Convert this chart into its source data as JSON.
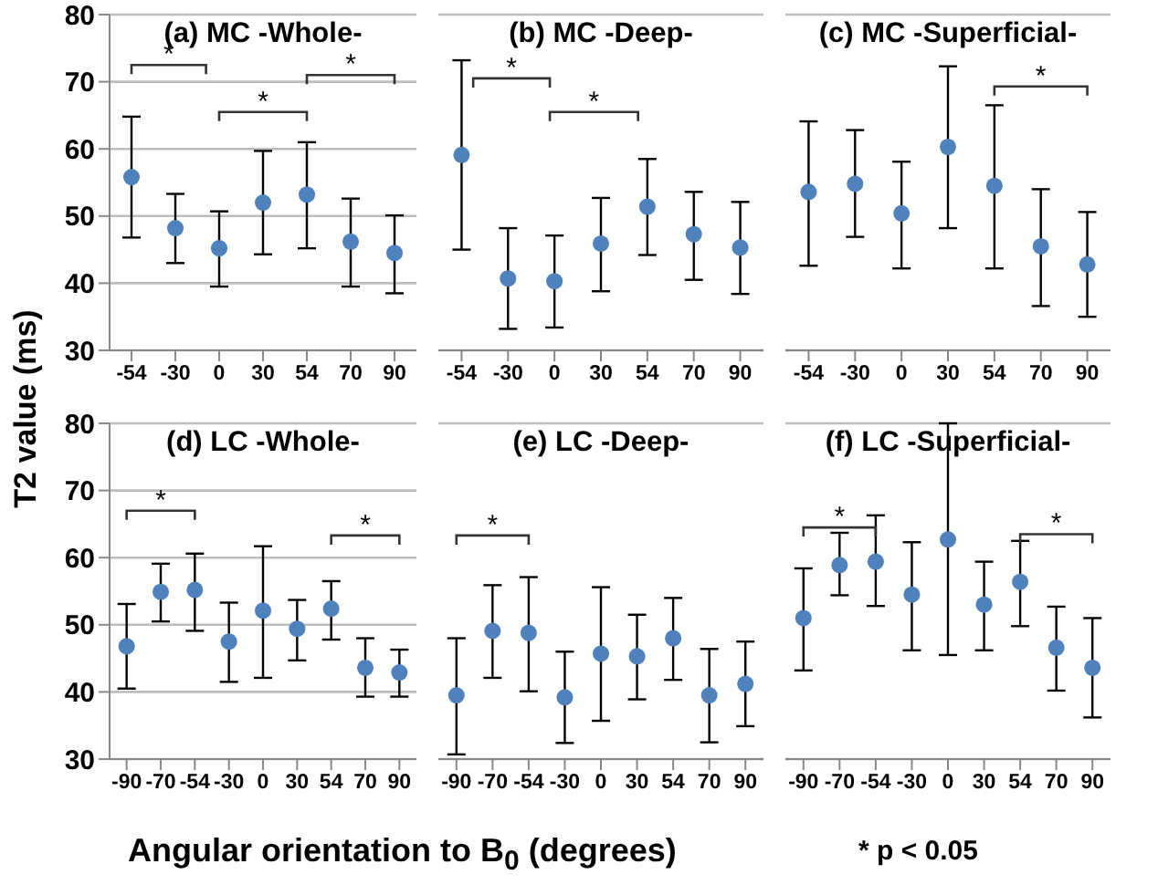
{
  "chart_data": [
    {
      "type": "scatter",
      "title": "(a) MC -Whole-",
      "ylabel": "T2 value (ms)",
      "categories": [
        "-54",
        "-30",
        "0",
        "30",
        "54",
        "70",
        "90"
      ],
      "series": [
        {
          "color": "#4f81bd",
          "values": [
            55.8,
            48.2,
            45.2,
            52,
            53.2,
            46.2,
            44.5
          ],
          "errors": [
            [
              46.8,
              64.8
            ],
            [
              43,
              53.3
            ],
            [
              39.5,
              50.7
            ],
            [
              44.3,
              59.7
            ],
            [
              45.2,
              61
            ],
            [
              39.5,
              52.6
            ],
            [
              38.5,
              50.1
            ]
          ]
        }
      ],
      "ylim": [
        30,
        80
      ],
      "yticks": [
        30,
        40,
        50,
        60,
        70,
        80
      ],
      "grid": "y",
      "marker": "circle",
      "annotations": [
        "*",
        "*",
        "*"
      ]
    },
    {
      "type": "scatter",
      "title": "(b) MC -Deep-",
      "categories": [
        "-54",
        "-30",
        "0",
        "30",
        "54",
        "70",
        "90"
      ],
      "series": [
        {
          "color": "#4f81bd",
          "values": [
            59.1,
            40.7,
            40.3,
            45.9,
            51.4,
            47.3,
            45.3
          ],
          "errors": [
            [
              45,
              73.2
            ],
            [
              33.2,
              48.2
            ],
            [
              33.4,
              47.1
            ],
            [
              38.8,
              52.7
            ],
            [
              44.2,
              58.5
            ],
            [
              40.5,
              53.6
            ],
            [
              38.4,
              52.1
            ]
          ]
        }
      ],
      "ylim": [
        30,
        80
      ],
      "yticks": [
        30,
        40,
        50,
        60,
        70,
        80
      ],
      "grid": "y",
      "marker": "circle",
      "tick_labels": "x",
      "annotations": [
        "*",
        "*"
      ]
    },
    {
      "type": "scatter",
      "title": "(c) MC -Superficial-",
      "categories": [
        "-54",
        "-30",
        "0",
        "30",
        "54",
        "70",
        "90"
      ],
      "series": [
        {
          "color": "#4f81bd",
          "values": [
            53.6,
            54.8,
            50.4,
            60.3,
            54.5,
            45.5,
            42.8
          ],
          "errors": [
            [
              42.6,
              64.1
            ],
            [
              46.9,
              62.8
            ],
            [
              42.2,
              58.1
            ],
            [
              48.2,
              72.3
            ],
            [
              42.2,
              66.5
            ],
            [
              36.6,
              54
            ],
            [
              35,
              50.6
            ]
          ]
        }
      ],
      "ylim": [
        30,
        80
      ],
      "yticks": [
        30,
        40,
        50,
        60,
        70,
        80
      ],
      "grid": "y",
      "marker": "circle",
      "tick_labels": "x",
      "annotations": [
        "*"
      ]
    },
    {
      "type": "scatter",
      "title": "(d) LC -Whole-",
      "categories": [
        "-90",
        "-70",
        "-54",
        "-30",
        "0",
        "30",
        "54",
        "70",
        "90"
      ],
      "series": [
        {
          "color": "#4f81bd",
          "values": [
            46.8,
            54.9,
            55.2,
            47.5,
            52.1,
            49.4,
            52.4,
            43.6,
            42.9
          ],
          "errors": [
            [
              40.5,
              53.1
            ],
            [
              50.5,
              59.1
            ],
            [
              49.1,
              60.6
            ],
            [
              41.5,
              53.3
            ],
            [
              42.1,
              61.7
            ],
            [
              44.7,
              53.7
            ],
            [
              47.8,
              56.5
            ],
            [
              39.3,
              48
            ],
            [
              39.3,
              46.3
            ]
          ]
        }
      ],
      "ylim": [
        30,
        80
      ],
      "yticks": [
        30,
        40,
        50,
        60,
        70,
        80
      ],
      "grid": "y",
      "marker": "circle",
      "annotations": [
        "*",
        "*"
      ]
    },
    {
      "type": "scatter",
      "title": "(e) LC -Deep-",
      "xlabel": "Angular orientation to B$_{0}$ (degrees)",
      "categories": [
        "-90",
        "-70",
        "-54",
        "-30",
        "0",
        "30",
        "54",
        "70",
        "90"
      ],
      "series": [
        {
          "color": "#4f81bd",
          "values": [
            39.5,
            49.1,
            48.8,
            39.2,
            45.7,
            45.3,
            48,
            39.5,
            41.2
          ],
          "errors": [
            [
              30.7,
              48
            ],
            [
              42.1,
              55.9
            ],
            [
              40.1,
              57.1
            ],
            [
              32.4,
              46
            ],
            [
              35.7,
              55.6
            ],
            [
              38.9,
              51.5
            ],
            [
              41.8,
              54
            ],
            [
              32.5,
              46.4
            ],
            [
              34.9,
              47.5
            ]
          ]
        }
      ],
      "ylim": [
        30,
        80
      ],
      "yticks": [
        30,
        40,
        50,
        60,
        70,
        80
      ],
      "grid": "y",
      "marker": "circle",
      "tick_labels": "x",
      "annotations": [
        "*"
      ]
    },
    {
      "type": "scatter",
      "title": "(f) LC -Superficial-",
      "categories": [
        "-90",
        "-70",
        "-54",
        "-30",
        "0",
        "30",
        "54",
        "70",
        "90"
      ],
      "series": [
        {
          "color": "#4f81bd",
          "values": [
            51,
            58.9,
            59.4,
            54.5,
            62.7,
            53,
            56.4,
            46.6,
            43.6
          ],
          "errors": [
            [
              43.2,
              58.4
            ],
            [
              54.4,
              63.7
            ],
            [
              52.8,
              66.3
            ],
            [
              46.2,
              62.3
            ],
            [
              45.5,
              80
            ],
            [
              46.2,
              59.4
            ],
            [
              49.8,
              62.5
            ],
            [
              40.2,
              52.7
            ],
            [
              36.2,
              51
            ]
          ]
        }
      ],
      "ylim": [
        30,
        80
      ],
      "yticks": [
        30,
        40,
        50,
        60,
        70,
        80
      ],
      "grid": "y",
      "marker": "circle",
      "tick_labels": "x",
      "annotations": [
        "*",
        "*",
        "* p < 0.05"
      ]
    }
  ]
}
